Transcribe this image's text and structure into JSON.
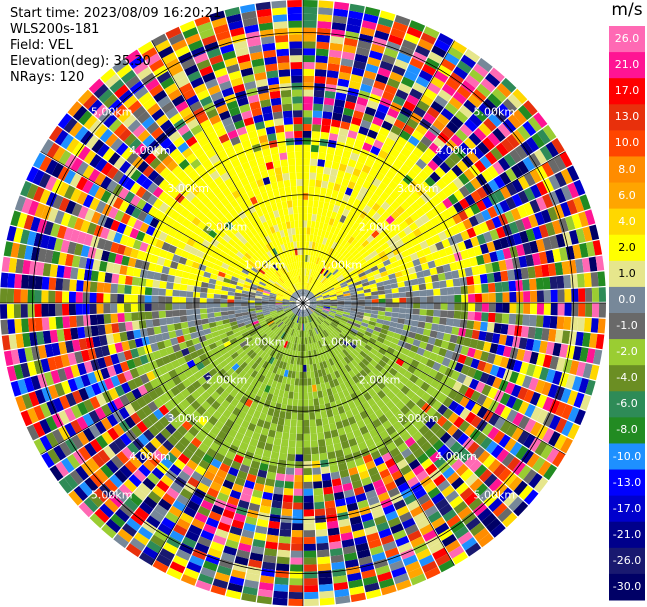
{
  "header": {
    "start_time": "Start time: 2023/08/09 16:20:21",
    "instrument": "WLS200s-181",
    "field": "Field: VEL",
    "elevation": "Elevation(deg): 35.30",
    "nrays": "NRays: 120"
  },
  "colorbar": {
    "unit": "m/s",
    "labels": [
      "26.0",
      "21.0",
      "17.0",
      "13.0",
      "10.0",
      "8.0",
      "6.0",
      "4.0",
      "2.0",
      "1.0",
      "0.0",
      "-1.0",
      "-2.0",
      "-4.0",
      "-6.0",
      "-8.0",
      "-10.0",
      "-13.0",
      "-17.0",
      "-21.0",
      "-26.0",
      "-30.0"
    ],
    "colors": [
      "#ff69b4",
      "#ff1493",
      "#ff0000",
      "#e8300c",
      "#ff4500",
      "#ff8c00",
      "#ffa500",
      "#ffd700",
      "#ffff00",
      "#e6e68c",
      "#778899",
      "#696969",
      "#9acd32",
      "#6b8e23",
      "#2e8b57",
      "#228b22",
      "#1e90ff",
      "#0000ff",
      "#0000cd",
      "#00008b",
      "#191970",
      "#000066"
    ]
  },
  "chart_data": {
    "type": "heatmap",
    "projection": "polar (PPI)",
    "field": "VEL",
    "units": "m/s",
    "nrays": 120,
    "elevation_deg": 35.3,
    "range_rings_km": [
      1.0,
      2.0,
      3.0,
      4.0,
      5.0
    ],
    "ring_labels": [
      "1.00km",
      "2.00km",
      "3.00km",
      "4.00km",
      "5.00km"
    ],
    "value_range": [
      -30.0,
      26.0
    ],
    "pattern": {
      "near_north_half": "2.0 to 4.0 (yellow)",
      "near_south_half": "-2.0 to -4.0 (green)",
      "transition_band": "-1.0 to 1.0 (grey)",
      "beyond_3km": "noise, full range"
    }
  }
}
